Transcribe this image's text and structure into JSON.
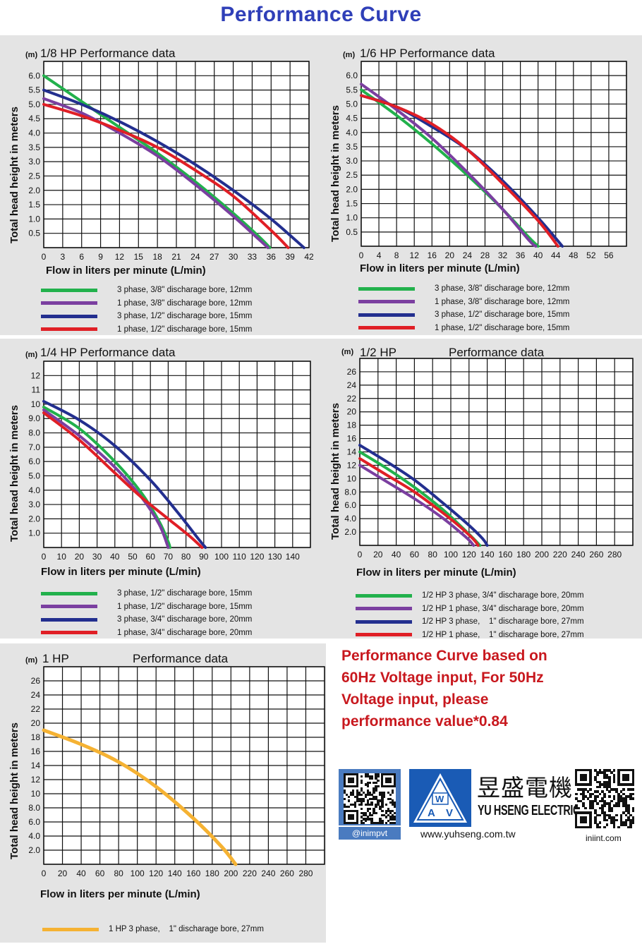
{
  "page": {
    "title": "Performance Curve",
    "note": [
      "Performance Curve based on",
      "60Hz Voltage input, For 50Hz",
      "Voltage input, please",
      "performance value*0.84"
    ],
    "colors": {
      "green": "#22b14c",
      "purple": "#7b3fa0",
      "blue": "#232f8f",
      "red": "#e01f26",
      "orange": "#f5b233",
      "title_blue": "#2f3fb8",
      "note_red": "#c8181e"
    }
  },
  "branding": {
    "handle": "@inimpvt",
    "logo_letters": [
      "W",
      "A",
      "V"
    ],
    "brand_cn": "昱盛電機",
    "brand_en": "YU HSENG ELECTRIC",
    "website": "www.yuhseng.com.tw",
    "website2": "iniint.com",
    "icons": [
      "qr-code-icon",
      "yhs-triangle-logo-icon",
      "qr-code-icon"
    ]
  },
  "chart_data": [
    {
      "type": "line",
      "title": "1/8 HP Performance data",
      "unit": "(m)",
      "ylabel": "Total head height in meters",
      "xlabel": "Flow in liters per minute (L/min)",
      "xticks": [
        "0",
        "3",
        "6",
        "9",
        "12",
        "15",
        "18",
        "21",
        "24",
        "27",
        "30",
        "33",
        "36",
        "39",
        "42"
      ],
      "yticks": [
        "0.5",
        "1.0",
        "1.5",
        "2.0",
        "2.5",
        "3.0",
        "3.5",
        "4.0",
        "4.5",
        "5.0",
        "5.5",
        "6.0"
      ],
      "xlim": [
        0,
        42
      ],
      "ylim": [
        0,
        6.5
      ],
      "grid": true,
      "legend_position": "bottom",
      "series": [
        {
          "name": "3 phase, 3/8\" discharage bore, 12mm",
          "color": "#22b14c",
          "x": [
            0,
            6,
            12,
            18,
            24,
            30,
            34,
            35.8
          ],
          "y": [
            6.0,
            5.1,
            4.2,
            3.3,
            2.3,
            1.2,
            0.4,
            0.0
          ]
        },
        {
          "name": "1 phase, 3/8\" discharage bore, 12mm",
          "color": "#7b3fa0",
          "x": [
            0,
            6,
            12,
            18,
            24,
            30,
            34,
            35.5
          ],
          "y": [
            5.2,
            4.7,
            4.0,
            3.2,
            2.2,
            1.1,
            0.3,
            0.0
          ]
        },
        {
          "name": "3 phase, 1/2\" discharage bore, 15mm",
          "color": "#232f8f",
          "x": [
            0,
            6,
            12,
            18,
            24,
            30,
            36,
            41.2
          ],
          "y": [
            5.5,
            5.0,
            4.4,
            3.7,
            2.9,
            2.0,
            1.0,
            0.0
          ]
        },
        {
          "name": "1 phase, 1/2\" discharage bore, 15mm",
          "color": "#e01f26",
          "x": [
            0,
            6,
            12,
            18,
            24,
            30,
            36,
            38.7
          ],
          "y": [
            5.0,
            4.6,
            4.1,
            3.5,
            2.7,
            1.8,
            0.6,
            0.0
          ]
        }
      ]
    },
    {
      "type": "line",
      "title": "1/6 HP Performance data",
      "unit": "(m)",
      "ylabel": "Total head height in meters",
      "xlabel": "Flow in liters per minute (L/min)",
      "xticks": [
        "0",
        "4",
        "8",
        "12",
        "16",
        "20",
        "24",
        "28",
        "32",
        "36",
        "40",
        "44",
        "48",
        "52",
        "56"
      ],
      "yticks": [
        "0.5",
        "1.0",
        "1.5",
        "2.0",
        "2.5",
        "3.0",
        "3.5",
        "4.0",
        "4.5",
        "5.0",
        "5.5",
        "6.0"
      ],
      "xlim": [
        0,
        60
      ],
      "ylim": [
        0,
        6.5
      ],
      "grid": true,
      "legend_position": "bottom",
      "series": [
        {
          "name": "3 phase, 3/8\" discharage bore, 12mm",
          "color": "#22b14c",
          "x": [
            0,
            8,
            16,
            24,
            32,
            38,
            40
          ],
          "y": [
            5.5,
            4.6,
            3.6,
            2.5,
            1.3,
            0.3,
            0.0
          ]
        },
        {
          "name": "1 phase, 3/8\" discharage bore, 12mm",
          "color": "#7b3fa0",
          "x": [
            0,
            8,
            16,
            24,
            32,
            38,
            39.5
          ],
          "y": [
            5.7,
            4.8,
            3.8,
            2.6,
            1.3,
            0.2,
            0.0
          ]
        },
        {
          "name": "3 phase, 1/2\" discharage bore, 15mm",
          "color": "#232f8f",
          "x": [
            0,
            8,
            16,
            24,
            32,
            40,
            45.5
          ],
          "y": [
            5.3,
            4.9,
            4.2,
            3.4,
            2.3,
            1.0,
            0.0
          ]
        },
        {
          "name": "1 phase, 1/2\" discharage bore, 15mm",
          "color": "#e01f26",
          "x": [
            0,
            8,
            16,
            24,
            32,
            40,
            44.5
          ],
          "y": [
            5.3,
            4.9,
            4.3,
            3.4,
            2.2,
            0.9,
            0.0
          ]
        }
      ]
    },
    {
      "type": "line",
      "title": "1/4 HP Performance data",
      "unit": "(m)",
      "ylabel": "Total head height in meters",
      "xlabel": "Flow in liters per minute (L/min)",
      "xticks": [
        "0",
        "10",
        "20",
        "30",
        "40",
        "50",
        "60",
        "70",
        "80",
        "90",
        "100",
        "110",
        "120",
        "130",
        "140"
      ],
      "yticks": [
        "1.0",
        "2.0",
        "3.0",
        "4.0",
        "5.0",
        "6.0",
        "7.0",
        "8.0",
        "9.0",
        "10",
        "11",
        "12"
      ],
      "xlim": [
        0,
        150
      ],
      "ylim": [
        0,
        13
      ],
      "grid": true,
      "legend_position": "bottom",
      "series": [
        {
          "name": "3 phase, 1/2\" discharage bore, 15mm",
          "color": "#22b14c",
          "x": [
            0,
            20,
            40,
            55,
            65,
            70,
            71
          ],
          "y": [
            9.8,
            8.3,
            6.0,
            3.8,
            1.8,
            0.4,
            0.0
          ]
        },
        {
          "name": "1 phase, 1/2\" discharage bore, 15mm",
          "color": "#7b3fa0",
          "x": [
            0,
            20,
            40,
            55,
            65,
            70
          ],
          "y": [
            9.6,
            7.8,
            5.6,
            3.5,
            1.6,
            0.0
          ]
        },
        {
          "name": "3 phase, 3/4\" discharage bore, 20mm",
          "color": "#232f8f",
          "x": [
            0,
            20,
            40,
            60,
            75,
            87,
            91
          ],
          "y": [
            10.2,
            8.9,
            7.1,
            4.7,
            2.5,
            0.6,
            0.0
          ]
        },
        {
          "name": "1 phase, 3/4\" discharage bore, 20mm",
          "color": "#e01f26",
          "x": [
            0,
            20,
            40,
            55,
            70,
            82,
            89
          ],
          "y": [
            9.4,
            7.5,
            5.2,
            3.5,
            2.0,
            0.8,
            0.0
          ]
        }
      ]
    },
    {
      "type": "line",
      "title": "1/2 HP",
      "title2": "Performance data",
      "unit": "(m)",
      "ylabel": "Total head height in meters",
      "xlabel": "Flow in liters per minute (L/min)",
      "xticks": [
        "0",
        "20",
        "40",
        "60",
        "80",
        "100",
        "120",
        "140",
        "160",
        "180",
        "200",
        "220",
        "240",
        "260",
        "280"
      ],
      "yticks": [
        "2.0",
        "4.0",
        "6.0",
        "8.0",
        "10",
        "12",
        "14",
        "16",
        "18",
        "20",
        "22",
        "24",
        "26"
      ],
      "xlim": [
        0,
        300
      ],
      "ylim": [
        0,
        28
      ],
      "grid": true,
      "legend_position": "bottom",
      "series": [
        {
          "name": "1/2 HP 3 phase, 3/4\" discharage bore, 20mm",
          "color": "#22b14c",
          "x": [
            0,
            30,
            60,
            90,
            110,
            125,
            132
          ],
          "y": [
            14.0,
            11.5,
            8.7,
            5.5,
            3.0,
            1.0,
            0.0
          ]
        },
        {
          "name": "1/2 HP 1 phase, 3/4\" discharage bore, 20mm",
          "color": "#7b3fa0",
          "x": [
            0,
            30,
            60,
            90,
            110,
            120,
            125
          ],
          "y": [
            12.0,
            9.5,
            7.0,
            4.2,
            2.0,
            0.8,
            0.0
          ]
        },
        {
          "name": "1/2 HP 3 phase,    1\" discharage bore, 27mm",
          "color": "#232f8f",
          "x": [
            0,
            30,
            60,
            90,
            120,
            135,
            140
          ],
          "y": [
            15.0,
            12.5,
            9.8,
            6.5,
            3.0,
            1.0,
            0.0
          ]
        },
        {
          "name": "1/2 HP 1 phase,    1\" discharage bore, 27mm",
          "color": "#e01f26",
          "x": [
            0,
            30,
            60,
            90,
            110,
            125,
            130
          ],
          "y": [
            13.0,
            10.5,
            8.0,
            5.0,
            2.8,
            0.9,
            0.0
          ]
        }
      ]
    },
    {
      "type": "line",
      "title": "1 HP",
      "title2": "Performance data",
      "unit": "(m)",
      "ylabel": "Total head height in meters",
      "xlabel": "Flow in liters per minute (L/min)",
      "xticks": [
        "0",
        "20",
        "40",
        "60",
        "80",
        "100",
        "120",
        "140",
        "160",
        "180",
        "200",
        "220",
        "240",
        "260",
        "280"
      ],
      "yticks": [
        "2.0",
        "4.0",
        "6.0",
        "8.0",
        "10",
        "12",
        "14",
        "16",
        "18",
        "20",
        "22",
        "24",
        "26"
      ],
      "xlim": [
        0,
        300
      ],
      "ylim": [
        0,
        28
      ],
      "grid": true,
      "legend_position": "bottom",
      "series": [
        {
          "name": "1 HP 3 phase,    1\" discharage bore, 27mm",
          "color": "#f5b233",
          "x": [
            0,
            40,
            80,
            120,
            160,
            190,
            205
          ],
          "y": [
            19.0,
            17.0,
            14.5,
            11.0,
            6.5,
            2.5,
            0.0
          ]
        }
      ]
    }
  ]
}
